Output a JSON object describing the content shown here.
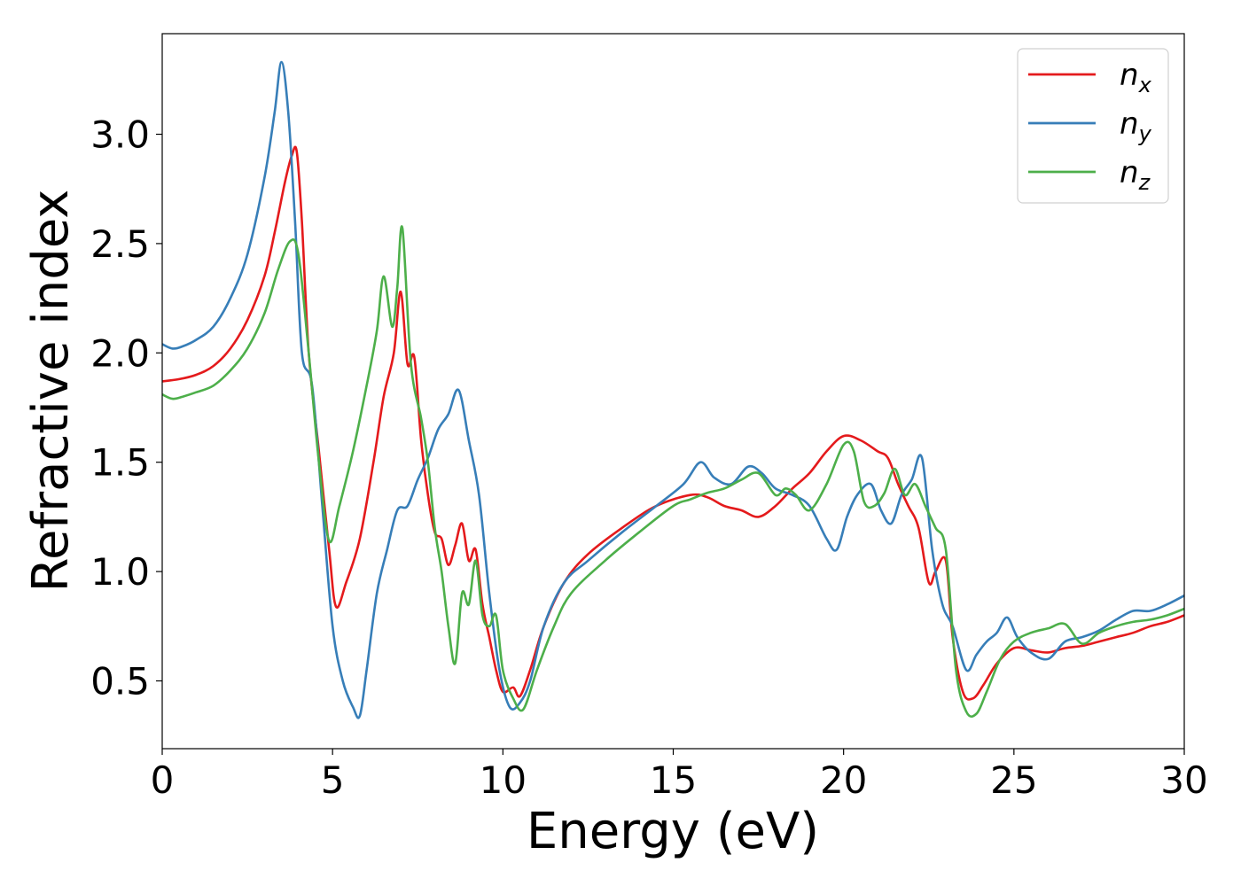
{
  "chart_data": {
    "type": "line",
    "xlabel": "Energy (eV)",
    "ylabel": "Refractive index",
    "xlim": [
      0,
      30
    ],
    "ylim": [
      0.19,
      3.46
    ],
    "xticks": [
      0,
      5,
      10,
      15,
      20,
      25,
      30
    ],
    "yticks": [
      0.5,
      1.0,
      1.5,
      2.0,
      2.5,
      3.0
    ],
    "xtick_labels": [
      "0",
      "5",
      "10",
      "15",
      "20",
      "25",
      "30"
    ],
    "ytick_labels": [
      "0.5",
      "1.0",
      "1.5",
      "2.0",
      "2.5",
      "3.0"
    ],
    "grid": false,
    "legend_position": "top-right",
    "series": [
      {
        "name": "n_x",
        "label_base": "n",
        "label_sub": "x",
        "color": "#e41a1c",
        "x": [
          0,
          0.5,
          1,
          1.5,
          2,
          2.5,
          3,
          3.3,
          3.6,
          3.8,
          3.95,
          4.1,
          4.3,
          4.6,
          4.9,
          5.1,
          5.4,
          5.8,
          6.2,
          6.5,
          6.8,
          7.0,
          7.2,
          7.4,
          7.6,
          7.8,
          8.0,
          8.2,
          8.4,
          8.6,
          8.8,
          9.0,
          9.2,
          9.4,
          9.6,
          9.8,
          10.0,
          10.3,
          10.5,
          10.8,
          11.2,
          11.8,
          12.5,
          13.5,
          14.5,
          15.5,
          16.0,
          16.5,
          17.0,
          17.5,
          18.0,
          18.5,
          19.0,
          19.5,
          20.0,
          20.5,
          21.0,
          21.3,
          21.6,
          21.9,
          22.2,
          22.5,
          22.7,
          23.0,
          23.2,
          23.5,
          23.8,
          24.1,
          24.5,
          25.0,
          25.5,
          26.0,
          26.5,
          27.0,
          27.5,
          28.0,
          28.5,
          29.0,
          29.5,
          30.0
        ],
        "y": [
          1.87,
          1.88,
          1.9,
          1.94,
          2.02,
          2.15,
          2.35,
          2.55,
          2.78,
          2.9,
          2.92,
          2.6,
          2.0,
          1.55,
          1.1,
          0.84,
          0.95,
          1.15,
          1.5,
          1.8,
          2.0,
          2.28,
          1.95,
          1.98,
          1.6,
          1.35,
          1.18,
          1.15,
          1.03,
          1.12,
          1.22,
          1.05,
          1.1,
          0.85,
          0.7,
          0.55,
          0.45,
          0.47,
          0.43,
          0.55,
          0.75,
          0.95,
          1.08,
          1.2,
          1.3,
          1.35,
          1.34,
          1.3,
          1.28,
          1.25,
          1.3,
          1.38,
          1.45,
          1.55,
          1.62,
          1.6,
          1.55,
          1.52,
          1.4,
          1.3,
          1.2,
          0.95,
          1.0,
          1.05,
          0.7,
          0.45,
          0.42,
          0.48,
          0.58,
          0.65,
          0.64,
          0.63,
          0.65,
          0.66,
          0.68,
          0.7,
          0.72,
          0.75,
          0.77,
          0.8
        ]
      },
      {
        "name": "n_y",
        "label_base": "n",
        "label_sub": "y",
        "color": "#377eb8",
        "x": [
          0,
          0.3,
          0.6,
          1,
          1.5,
          2,
          2.5,
          3,
          3.3,
          3.5,
          3.7,
          3.9,
          4.1,
          4.4,
          4.7,
          5.0,
          5.3,
          5.6,
          5.8,
          6.0,
          6.3,
          6.6,
          6.9,
          7.2,
          7.5,
          7.8,
          8.1,
          8.4,
          8.7,
          9.0,
          9.3,
          9.6,
          9.9,
          10.2,
          10.5,
          10.8,
          11.2,
          11.8,
          12.5,
          13.5,
          14.5,
          15.3,
          15.8,
          16.2,
          16.7,
          17.2,
          17.6,
          18.0,
          18.5,
          19.0,
          19.5,
          19.8,
          20.1,
          20.4,
          20.8,
          21.1,
          21.4,
          21.7,
          22.0,
          22.3,
          22.6,
          22.9,
          23.2,
          23.6,
          23.9,
          24.2,
          24.5,
          24.8,
          25.1,
          25.5,
          26.0,
          26.5,
          27.0,
          27.5,
          28.0,
          28.5,
          29.0,
          29.5,
          30.0
        ],
        "y": [
          2.04,
          2.02,
          2.03,
          2.06,
          2.12,
          2.25,
          2.45,
          2.8,
          3.1,
          3.33,
          3.1,
          2.6,
          2.0,
          1.85,
          1.3,
          0.75,
          0.5,
          0.38,
          0.34,
          0.55,
          0.9,
          1.1,
          1.28,
          1.3,
          1.42,
          1.52,
          1.65,
          1.72,
          1.83,
          1.6,
          1.35,
          0.9,
          0.55,
          0.38,
          0.4,
          0.5,
          0.75,
          0.95,
          1.05,
          1.18,
          1.3,
          1.4,
          1.5,
          1.43,
          1.4,
          1.48,
          1.45,
          1.38,
          1.35,
          1.3,
          1.15,
          1.1,
          1.25,
          1.35,
          1.4,
          1.28,
          1.22,
          1.35,
          1.42,
          1.52,
          1.1,
          0.85,
          0.75,
          0.55,
          0.62,
          0.68,
          0.72,
          0.79,
          0.7,
          0.63,
          0.6,
          0.68,
          0.7,
          0.73,
          0.78,
          0.82,
          0.82,
          0.85,
          0.89
        ]
      },
      {
        "name": "n_z",
        "label_base": "n",
        "label_sub": "z",
        "color": "#4daf4a",
        "x": [
          0,
          0.3,
          0.6,
          1,
          1.5,
          2,
          2.5,
          3,
          3.4,
          3.75,
          4.0,
          4.3,
          4.6,
          4.9,
          5.2,
          5.6,
          6.0,
          6.3,
          6.5,
          6.75,
          6.9,
          7.05,
          7.3,
          7.6,
          7.8,
          8.0,
          8.2,
          8.4,
          8.6,
          8.8,
          9.0,
          9.2,
          9.4,
          9.6,
          9.8,
          10.0,
          10.3,
          10.6,
          11.0,
          11.5,
          12.0,
          13.0,
          14.0,
          15.0,
          15.5,
          16.0,
          16.5,
          17.0,
          17.5,
          18.0,
          18.3,
          18.6,
          19.0,
          19.5,
          20.0,
          20.3,
          20.6,
          20.9,
          21.2,
          21.5,
          21.8,
          22.1,
          22.4,
          22.7,
          23.0,
          23.3,
          23.6,
          23.9,
          24.2,
          24.6,
          25.0,
          25.5,
          26.0,
          26.5,
          27.0,
          27.5,
          28.0,
          28.5,
          29.0,
          29.5,
          30.0
        ],
        "y": [
          1.81,
          1.79,
          1.8,
          1.82,
          1.85,
          1.92,
          2.02,
          2.18,
          2.38,
          2.51,
          2.45,
          2.0,
          1.5,
          1.14,
          1.3,
          1.55,
          1.85,
          2.1,
          2.35,
          2.12,
          2.3,
          2.57,
          1.95,
          1.7,
          1.5,
          1.2,
          1.0,
          0.75,
          0.58,
          0.9,
          0.85,
          1.05,
          0.8,
          0.75,
          0.8,
          0.55,
          0.42,
          0.37,
          0.55,
          0.75,
          0.9,
          1.05,
          1.18,
          1.3,
          1.33,
          1.36,
          1.38,
          1.42,
          1.45,
          1.35,
          1.38,
          1.35,
          1.28,
          1.4,
          1.58,
          1.55,
          1.32,
          1.3,
          1.36,
          1.47,
          1.35,
          1.4,
          1.3,
          1.2,
          1.1,
          0.55,
          0.36,
          0.35,
          0.45,
          0.6,
          0.68,
          0.72,
          0.74,
          0.76,
          0.67,
          0.72,
          0.75,
          0.77,
          0.78,
          0.8,
          0.83
        ]
      }
    ]
  }
}
